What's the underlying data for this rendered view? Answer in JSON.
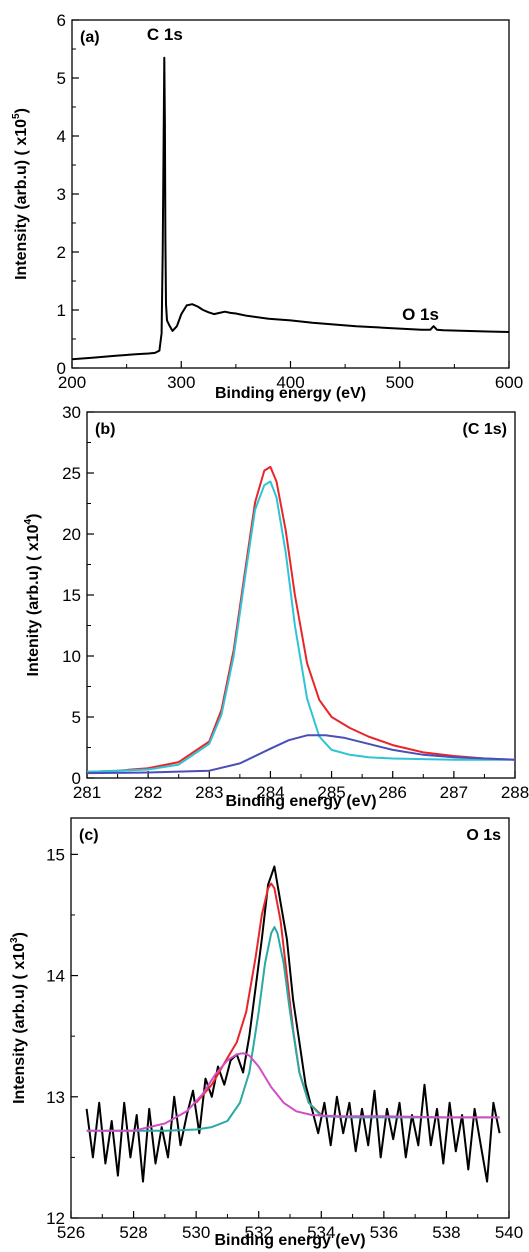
{
  "chart_data": [
    {
      "type": "line",
      "panel_label": "(a)",
      "xlabel": "Binding energy (eV)",
      "ylabel_main": "Intensity (arb.u) ( x10",
      "ylabel_exp": "5",
      "ylabel_close": ")",
      "xlim": [
        200,
        600
      ],
      "ylim": [
        0,
        6
      ],
      "xticks": [
        200,
        300,
        400,
        500,
        600
      ],
      "yticks": [
        0,
        1,
        2,
        3,
        4,
        5,
        6
      ],
      "grid": false,
      "annotations": [
        {
          "text": "C 1s",
          "x": 285,
          "y": 5.55
        },
        {
          "text": "O 1s",
          "x": 530,
          "y": 0.72
        }
      ],
      "series": [
        {
          "color": "#000000",
          "x": [
            200,
            220,
            240,
            260,
            270,
            276,
            280,
            282,
            283,
            284,
            284.5,
            285,
            285.5,
            286,
            287,
            289,
            292,
            296,
            300,
            305,
            310,
            315,
            320,
            325,
            330,
            335,
            340,
            345,
            350,
            360,
            380,
            400,
            420,
            440,
            460,
            480,
            500,
            520,
            528,
            531,
            534,
            540,
            560,
            580,
            600
          ],
          "y": [
            0.15,
            0.18,
            0.21,
            0.24,
            0.25,
            0.26,
            0.3,
            0.6,
            2.0,
            4.3,
            5.35,
            4.2,
            2.2,
            1.1,
            0.82,
            0.74,
            0.64,
            0.72,
            0.93,
            1.08,
            1.1,
            1.06,
            1.0,
            0.96,
            0.93,
            0.95,
            0.97,
            0.95,
            0.94,
            0.9,
            0.85,
            0.82,
            0.78,
            0.75,
            0.72,
            0.7,
            0.68,
            0.66,
            0.66,
            0.72,
            0.66,
            0.65,
            0.64,
            0.63,
            0.62
          ]
        }
      ]
    },
    {
      "type": "line",
      "panel_label": "(b)",
      "corner_label": "(C 1s)",
      "xlabel": "Binding energy (eV)",
      "ylabel_main": "Intenity (arb.u) ( x10",
      "ylabel_exp": "4",
      "ylabel_close": ")",
      "xlim": [
        281,
        288
      ],
      "ylim": [
        0,
        30
      ],
      "xticks": [
        281,
        282,
        283,
        284,
        285,
        286,
        287,
        288
      ],
      "yticks": [
        0,
        5,
        10,
        15,
        20,
        25,
        30
      ],
      "grid": false,
      "series": [
        {
          "color": "#e8262a",
          "x": [
            281,
            281.5,
            282,
            282.5,
            283,
            283.2,
            283.4,
            283.6,
            283.75,
            283.9,
            284,
            284.1,
            284.25,
            284.4,
            284.6,
            284.8,
            285,
            285.3,
            285.6,
            286,
            286.5,
            287,
            287.5,
            288
          ],
          "y": [
            0.5,
            0.6,
            0.8,
            1.3,
            3.0,
            5.6,
            10.5,
            17.5,
            22.6,
            25.2,
            25.5,
            24.3,
            20.3,
            15.0,
            9.4,
            6.4,
            5.0,
            4.1,
            3.4,
            2.7,
            2.1,
            1.8,
            1.6,
            1.5
          ]
        },
        {
          "color": "#2ec4d6",
          "x": [
            281,
            281.5,
            282,
            282.5,
            283,
            283.2,
            283.4,
            283.6,
            283.75,
            283.9,
            284,
            284.1,
            284.25,
            284.4,
            284.6,
            284.8,
            285,
            285.3,
            285.6,
            286,
            286.5,
            287,
            287.5,
            288
          ],
          "y": [
            0.5,
            0.6,
            0.7,
            1.1,
            2.8,
            5.2,
            10.0,
            17.0,
            22.0,
            24.0,
            24.3,
            23.0,
            18.5,
            12.5,
            6.5,
            3.4,
            2.3,
            1.9,
            1.7,
            1.6,
            1.55,
            1.5,
            1.5,
            1.5
          ]
        },
        {
          "color": "#4a4fb8",
          "x": [
            281,
            282,
            283,
            283.5,
            284,
            284.3,
            284.6,
            284.9,
            285.2,
            285.6,
            286,
            286.5,
            287,
            287.5,
            288
          ],
          "y": [
            0.4,
            0.45,
            0.6,
            1.2,
            2.4,
            3.1,
            3.5,
            3.5,
            3.3,
            2.8,
            2.3,
            1.9,
            1.7,
            1.6,
            1.5
          ]
        }
      ]
    },
    {
      "type": "line",
      "panel_label": "(c)",
      "corner_label": "O 1s",
      "xlabel": "Binding energy (eV)",
      "ylabel_main": "Intensity (arb.u) ( x10",
      "ylabel_exp": "3",
      "ylabel_close": ")",
      "xlim": [
        526,
        540
      ],
      "ylim": [
        12,
        15.3
      ],
      "xticks": [
        526,
        528,
        530,
        532,
        534,
        536,
        538,
        540
      ],
      "yticks": [
        12,
        13,
        14,
        15
      ],
      "grid": false,
      "series": [
        {
          "color": "#000000",
          "x": [
            526.5,
            526.7,
            526.9,
            527.1,
            527.3,
            527.5,
            527.7,
            527.9,
            528.1,
            528.3,
            528.5,
            528.7,
            528.9,
            529.1,
            529.3,
            529.5,
            529.7,
            529.9,
            530.1,
            530.3,
            530.5,
            530.7,
            530.9,
            531.1,
            531.3,
            531.5,
            531.7,
            531.9,
            532.1,
            532.3,
            532.5,
            532.7,
            532.9,
            533.1,
            533.3,
            533.5,
            533.7,
            533.9,
            534.1,
            534.3,
            534.5,
            534.7,
            534.9,
            535.1,
            535.3,
            535.5,
            535.7,
            535.9,
            536.1,
            536.3,
            536.5,
            536.7,
            536.9,
            537.1,
            537.3,
            537.5,
            537.7,
            537.9,
            538.1,
            538.3,
            538.5,
            538.7,
            538.9,
            539.1,
            539.3,
            539.5,
            539.7
          ],
          "y": [
            12.9,
            12.5,
            12.95,
            12.45,
            12.8,
            12.35,
            12.95,
            12.5,
            12.85,
            12.3,
            12.9,
            12.45,
            12.75,
            12.5,
            13.0,
            12.6,
            12.85,
            13.05,
            12.7,
            13.15,
            13.0,
            13.25,
            13.1,
            13.3,
            13.35,
            13.2,
            13.5,
            13.9,
            14.3,
            14.75,
            14.9,
            14.6,
            14.3,
            13.8,
            13.45,
            13.1,
            12.9,
            12.7,
            12.95,
            12.6,
            13.0,
            12.7,
            12.95,
            12.55,
            12.9,
            12.6,
            13.05,
            12.5,
            12.9,
            12.65,
            12.95,
            12.5,
            12.85,
            12.6,
            13.1,
            12.6,
            12.9,
            12.45,
            12.95,
            12.55,
            12.85,
            12.4,
            12.9,
            12.6,
            12.3,
            12.95,
            12.7
          ]
        },
        {
          "color": "#e8262a",
          "x": [
            530,
            530.5,
            531,
            531.3,
            531.6,
            531.9,
            532.1,
            532.3,
            532.4,
            532.5,
            532.7,
            532.9,
            533.1,
            533.3,
            533.6,
            534
          ],
          "y": [
            12.95,
            13.1,
            13.32,
            13.45,
            13.7,
            14.15,
            14.5,
            14.72,
            14.76,
            14.72,
            14.45,
            14.0,
            13.55,
            13.2,
            12.95,
            12.85
          ]
        },
        {
          "color": "#2aa9a5",
          "x": [
            526.5,
            529,
            530,
            530.5,
            531,
            531.4,
            531.7,
            532,
            532.2,
            532.4,
            532.5,
            532.6,
            532.8,
            533,
            533.3,
            533.6,
            534,
            535,
            536,
            538,
            539.7
          ],
          "y": [
            12.72,
            12.72,
            12.73,
            12.75,
            12.8,
            12.95,
            13.2,
            13.7,
            14.1,
            14.35,
            14.4,
            14.35,
            14.1,
            13.7,
            13.2,
            12.95,
            12.84,
            12.83,
            12.83,
            12.83,
            12.83
          ]
        },
        {
          "color": "#d04fc3",
          "x": [
            526.5,
            528,
            529,
            529.7,
            530.2,
            530.6,
            531,
            531.3,
            531.5,
            531.7,
            532,
            532.4,
            532.8,
            533.2,
            533.7,
            534.5,
            536,
            538,
            539.7
          ],
          "y": [
            12.72,
            12.72,
            12.78,
            12.88,
            13.02,
            13.18,
            13.3,
            13.35,
            13.36,
            13.34,
            13.25,
            13.08,
            12.95,
            12.88,
            12.85,
            12.84,
            12.84,
            12.83,
            12.83
          ]
        }
      ]
    }
  ]
}
